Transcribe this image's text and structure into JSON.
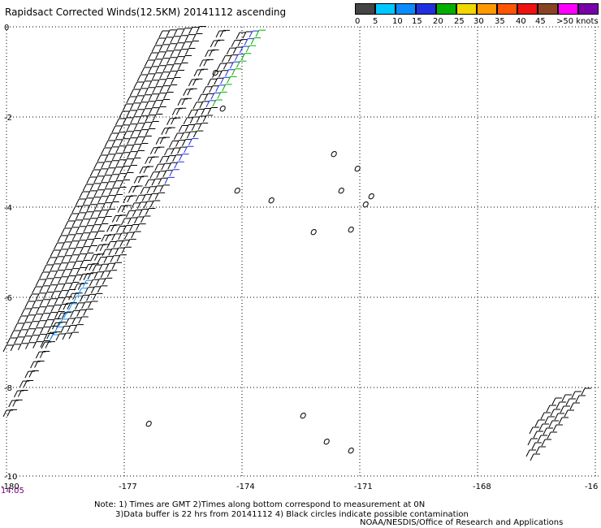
{
  "title": "Rapidsact Corrected Winds(12.5KM) 20141112 ascending",
  "legend": {
    "labels": [
      "0",
      "5",
      "10",
      "15",
      "20",
      "25",
      "30",
      "35",
      "40",
      "45",
      ">50 knots"
    ],
    "colors": [
      "#444444",
      "#00c8ff",
      "#0a8cff",
      "#2030e0",
      "#00b000",
      "#f0d800",
      "#ff9900",
      "#ff5500",
      "#ee1111",
      "#884422",
      "#ff00ff",
      "#7700aa"
    ]
  },
  "axes": {
    "y_ticks": [
      "0",
      "-2",
      "-4",
      "-6",
      "-8",
      "-10"
    ],
    "x_ticks": [
      "-180",
      "-177",
      "-174",
      "-171",
      "-168",
      "-16"
    ]
  },
  "time_label": "14:05",
  "notes": {
    "line1": "Note: 1) Times are GMT 2)Times along bottom correspond to measurement at 0N",
    "line2": "3)Data buffer is 22 hrs from 20141112 4) Black circles indicate possible contamination"
  },
  "credit": "NOAA/NESDIS/Office of Research and Applications"
}
